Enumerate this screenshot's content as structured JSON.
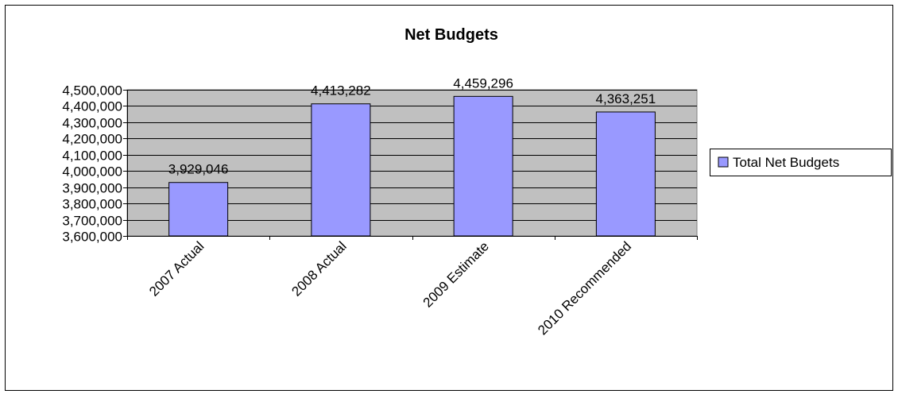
{
  "chart_data": {
    "type": "bar",
    "title": "Net Budgets",
    "categories": [
      "2007 Actual",
      "2008 Actual",
      "2009 Estimate",
      "2010 Recommended"
    ],
    "series": [
      {
        "name": "Total Net Budgets",
        "values": [
          3929046,
          4413282,
          4459296,
          4363251
        ]
      }
    ],
    "data_labels": [
      "3,929,046",
      "4,413,282",
      "4,459,296",
      "4,363,251"
    ],
    "y_ticks": [
      "3,600,000",
      "3,700,000",
      "3,800,000",
      "3,900,000",
      "4,000,000",
      "4,100,000",
      "4,200,000",
      "4,300,000",
      "4,400,000",
      "4,500,000"
    ],
    "ylim": [
      3600000,
      4500000
    ],
    "grid": true,
    "legend_position": "right",
    "colors": {
      "bar_fill": "#9999ff",
      "plot_background": "#c0c0c0",
      "border": "#000000"
    }
  }
}
